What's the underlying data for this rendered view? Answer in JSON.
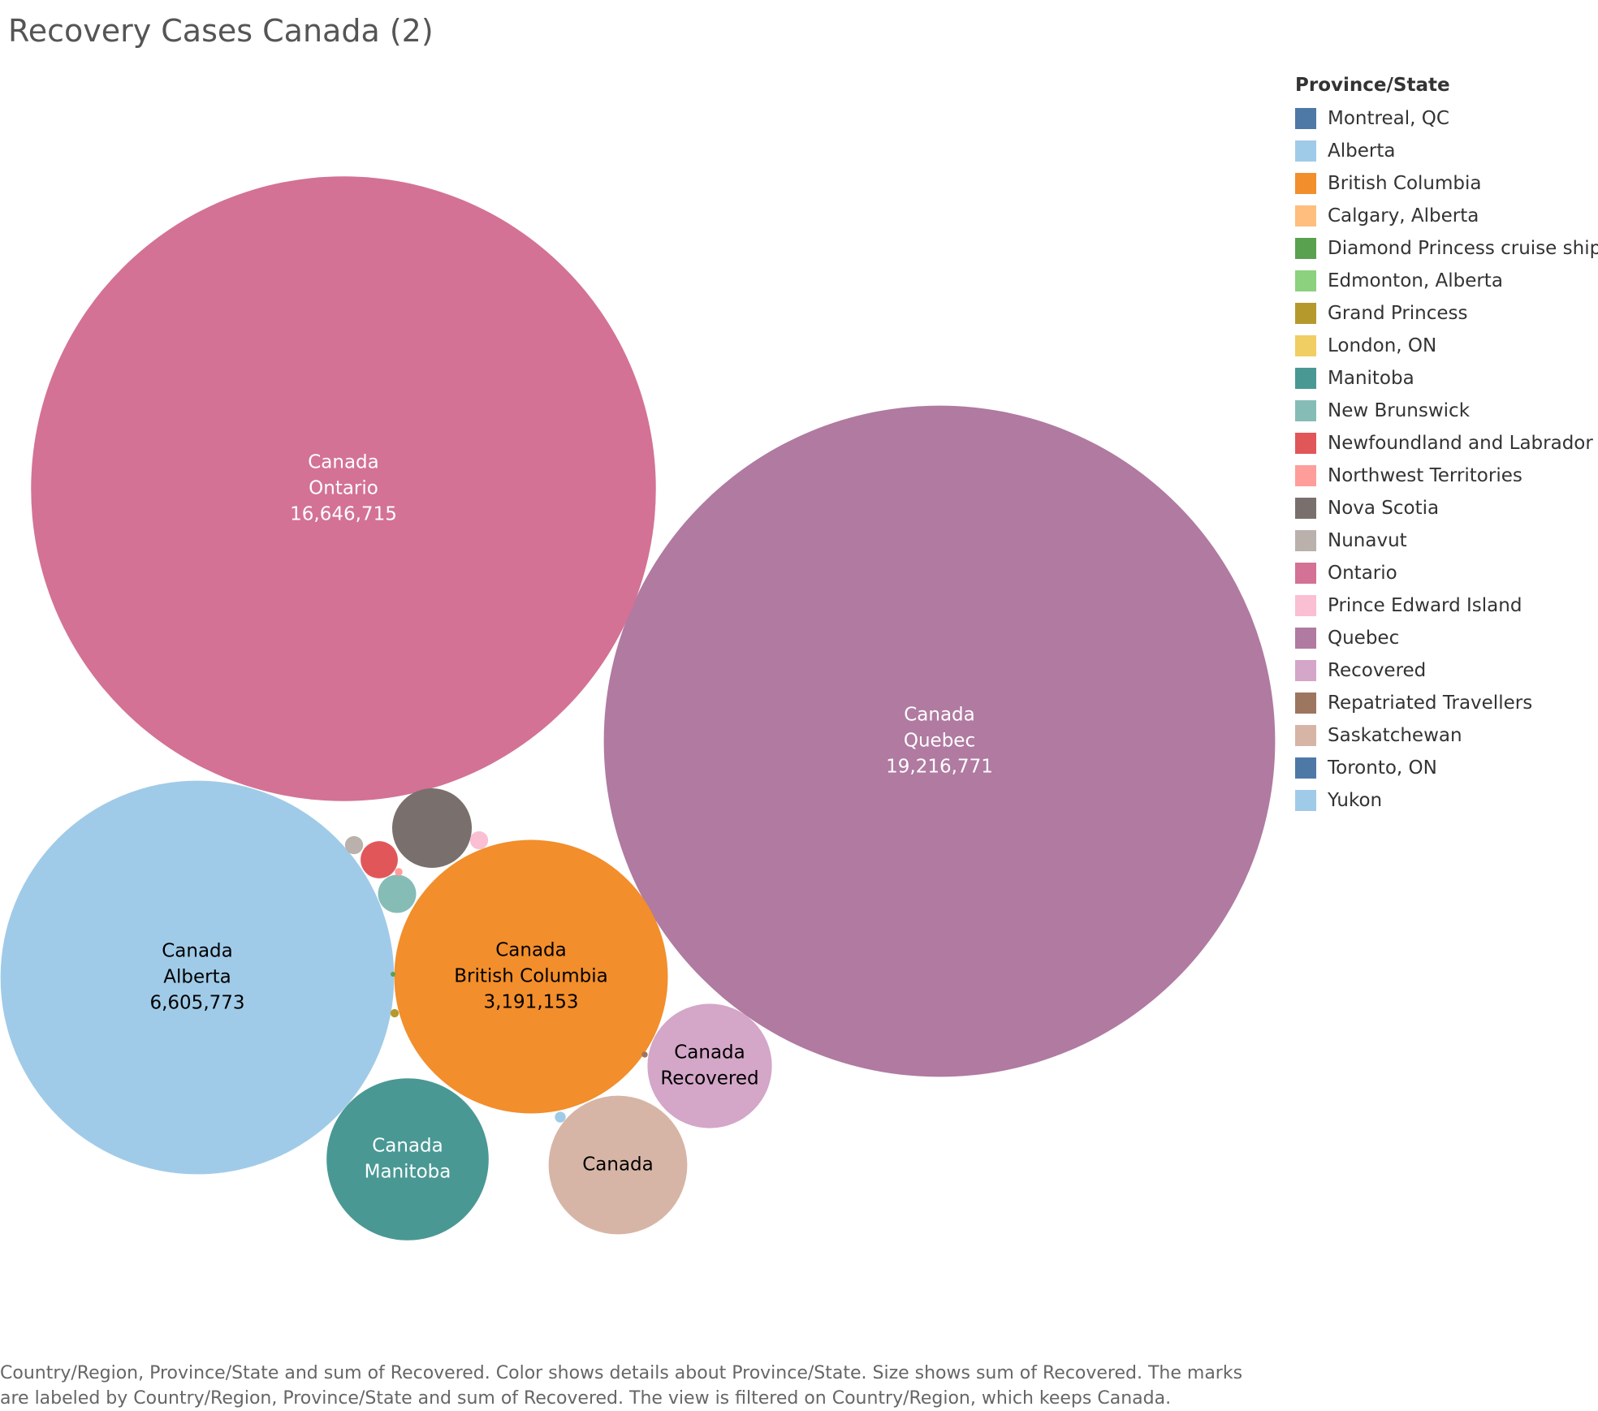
{
  "title": "Recovery Cases Canada (2)",
  "legend": {
    "title": "Province/State",
    "items": [
      {
        "label": " Montreal, QC",
        "color": "#4e79a7"
      },
      {
        "label": "Alberta",
        "color": "#a0cbe8"
      },
      {
        "label": "British Columbia",
        "color": "#f28e2b"
      },
      {
        "label": "Calgary, Alberta",
        "color": "#ffbe7d"
      },
      {
        "label": "Diamond Princess cruise ship",
        "color": "#59a14f"
      },
      {
        "label": "Edmonton, Alberta",
        "color": "#8cd17d"
      },
      {
        "label": "Grand Princess",
        "color": "#b6992d"
      },
      {
        "label": "London, ON",
        "color": "#f1ce63"
      },
      {
        "label": "Manitoba",
        "color": "#499894"
      },
      {
        "label": "New Brunswick",
        "color": "#86bcb6"
      },
      {
        "label": "Newfoundland and Labrador",
        "color": "#e15759"
      },
      {
        "label": "Northwest Territories",
        "color": "#ff9d9a"
      },
      {
        "label": "Nova Scotia",
        "color": "#79706e"
      },
      {
        "label": "Nunavut",
        "color": "#bab0ac"
      },
      {
        "label": "Ontario",
        "color": "#d37295"
      },
      {
        "label": "Prince Edward Island",
        "color": "#fabfd2"
      },
      {
        "label": "Quebec",
        "color": "#b07aa1"
      },
      {
        "label": "Recovered",
        "color": "#d4a6c8"
      },
      {
        "label": "Repatriated Travellers",
        "color": "#9d7660"
      },
      {
        "label": "Saskatchewan",
        "color": "#d7b5a6"
      },
      {
        "label": "Toronto, ON",
        "color": "#4e79a7"
      },
      {
        "label": "Yukon",
        "color": "#a0cbe8"
      }
    ]
  },
  "chart_data": {
    "type": "packed-bubble",
    "size_measure": "sum of Recovered",
    "color_dimension": "Province/State",
    "bubbles": [
      {
        "country": "Canada",
        "province": "Quebec",
        "value": 19216771,
        "color": "#b07aa1",
        "lines": [
          "Canada",
          "Quebec",
          "19,216,771"
        ],
        "text_color": "#ffffff"
      },
      {
        "country": "Canada",
        "province": "Ontario",
        "value": 16646715,
        "color": "#d37295",
        "lines": [
          "Canada",
          "Ontario",
          "16,646,715"
        ],
        "text_color": "#ffffff"
      },
      {
        "country": "Canada",
        "province": "Alberta",
        "value": 6605773,
        "color": "#a0cbe8",
        "lines": [
          "Canada",
          "Alberta",
          "6,605,773"
        ],
        "text_color": "#000000"
      },
      {
        "country": "Canada",
        "province": "British Columbia",
        "value": 3191153,
        "color": "#f28e2b",
        "lines": [
          "Canada",
          "British Columbia",
          "3,191,153"
        ],
        "text_color": "#000000"
      },
      {
        "country": "Canada",
        "province": "Manitoba",
        "value": 1120000,
        "color": "#499894",
        "lines": [
          "Canada",
          "Manitoba"
        ],
        "text_color": "#ffffff"
      },
      {
        "country": "Canada",
        "province": "Saskatchewan",
        "value": 820000,
        "color": "#d7b5a6",
        "lines": [
          "Canada"
        ],
        "text_color": "#000000"
      },
      {
        "country": "Canada",
        "province": "Recovered",
        "value": 660000,
        "color": "#d4a6c8",
        "lines": [
          "Canada",
          "Recovered"
        ],
        "text_color": "#000000"
      },
      {
        "country": "Canada",
        "province": "Nova Scotia",
        "value": 270000,
        "color": "#79706e",
        "lines": [],
        "text_color": "#ffffff"
      },
      {
        "country": "Canada",
        "province": "New Brunswick",
        "value": 62000,
        "color": "#86bcb6",
        "lines": [],
        "text_color": "#ffffff"
      },
      {
        "country": "Canada",
        "province": "Newfoundland and Labrador",
        "value": 59000,
        "color": "#e15759",
        "lines": [],
        "text_color": "#ffffff"
      },
      {
        "country": "Canada",
        "province": "Prince Edward Island",
        "value": 14000,
        "color": "#fabfd2",
        "lines": [],
        "text_color": "#ffffff"
      },
      {
        "country": "Canada",
        "province": "Nunavut",
        "value": 14000,
        "color": "#bab0ac",
        "lines": [],
        "text_color": "#ffffff"
      },
      {
        "country": "Canada",
        "province": "Yukon",
        "value": 5000,
        "color": "#a0cbe8",
        "lines": [],
        "text_color": "#ffffff"
      },
      {
        "country": "Canada",
        "province": "Grand Princess",
        "value": 3000,
        "color": "#b6992d",
        "lines": [],
        "text_color": "#ffffff"
      },
      {
        "country": "Canada",
        "province": "Northwest Territories",
        "value": 2500,
        "color": "#ff9d9a",
        "lines": [],
        "text_color": "#ffffff"
      },
      {
        "country": "Canada",
        "province": "Repatriated Travellers",
        "value": 1500,
        "color": "#9d7660",
        "lines": [],
        "text_color": "#ffffff"
      },
      {
        "country": "Canada",
        "province": "Diamond Princess cruise ship",
        "value": 1000,
        "color": "#59a14f",
        "lines": [],
        "text_color": "#ffffff"
      }
    ]
  },
  "caption": "Country/Region, Province/State and sum of Recovered.  Color shows details about Province/State.  Size shows sum of Recovered.  The marks are labeled by Country/Region, Province/State and sum of Recovered. The view is filtered on Country/Region, which keeps Canada."
}
